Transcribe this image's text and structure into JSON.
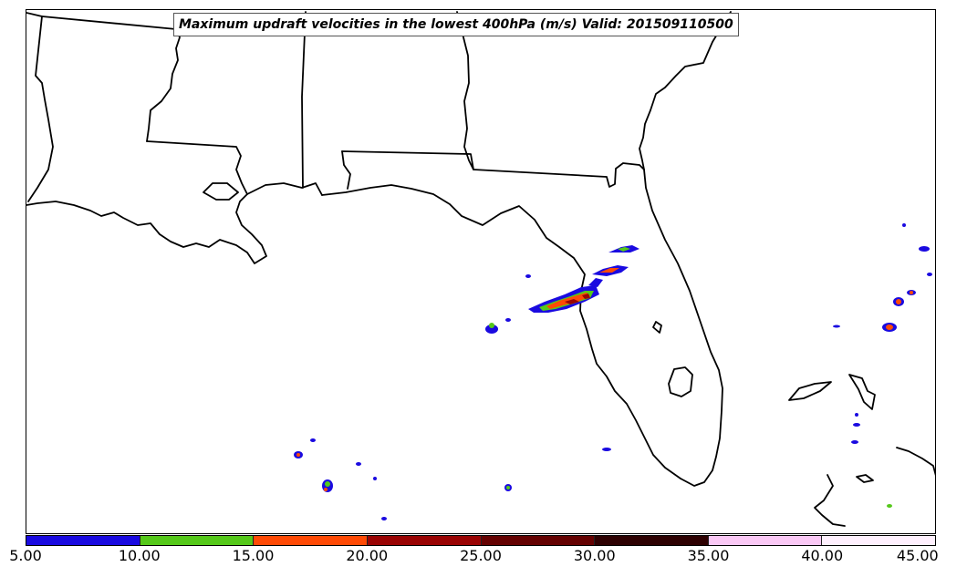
{
  "title": "Maximum updraft velocities in the lowest 400hPa (m/s) Valid: 201509110500",
  "colorbar": {
    "ticks": [
      "5.00",
      "10.00",
      "15.00",
      "20.00",
      "25.00",
      "30.00",
      "35.00",
      "40.00",
      "45.00"
    ],
    "colors": [
      "#1a0ae0",
      "#55c81a",
      "#ff4a05",
      "#9a0404",
      "#650202",
      "#2e0102",
      "#fac8f5",
      "#fff0fe"
    ]
  },
  "map": {
    "region": "Southeastern United States / Gulf of Mexico",
    "border_color": "#000000",
    "echo_colors": {
      "low": "#1a0ae0",
      "mid": "#55c81a",
      "high": "#ff4a05",
      "peak": "#9a0404"
    }
  }
}
